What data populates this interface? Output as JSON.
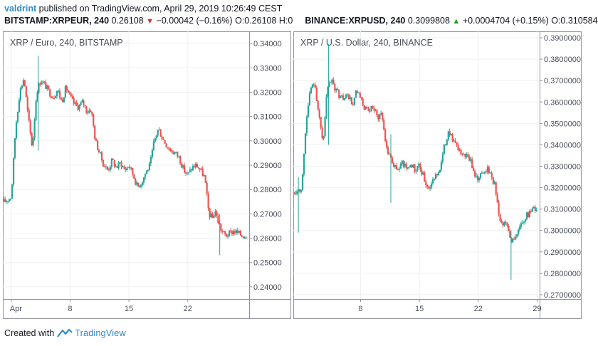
{
  "header": {
    "author": "valdrint",
    "published_text": "published on TradingView.com, April 29, 2019 10:26:49 CEST",
    "left_symbol": "BITSTAMP:XRPEUR, 240",
    "left_last": "0.26108",
    "left_change": "−0.00042 (−0.16%)",
    "left_ohlc": "O:0.26108 H:0",
    "right_symbol": "BINANCE:XRPUSD, 240",
    "right_last": "0.3099808",
    "right_change": "+0.0004704 (+0.15%)",
    "right_ohlc": "O:0.310584"
  },
  "footer": {
    "created_with": "Created with",
    "brand": "TradingView"
  },
  "colors": {
    "up": "#26a69a",
    "down": "#ef5350",
    "grid": "#eef0f3",
    "axis": "#8e939c",
    "author": "#2f8ccb"
  },
  "chart_data": [
    {
      "type": "candlestick",
      "title": "XRP / Euro, 240, BITSTAMP",
      "ylim": [
        0.235,
        0.345
      ],
      "y_ticks": [
        0.24,
        0.25,
        0.26,
        0.27,
        0.28,
        0.29,
        0.3,
        0.31,
        0.32,
        0.33,
        0.34
      ],
      "y_tick_labels": [
        "0.24000",
        "0.25000",
        "0.26000",
        "0.27000",
        "0.28000",
        "0.29000",
        "0.30000",
        "0.31000",
        "0.32000",
        "0.33000",
        "0.34000"
      ],
      "x_ticks": [
        {
          "day": 1,
          "label": "Apr"
        },
        {
          "day": 8,
          "label": "8"
        },
        {
          "day": 15,
          "label": "15"
        },
        {
          "day": 22,
          "label": "22"
        }
      ],
      "x_range": [
        0,
        29.3
      ],
      "series": [
        {
          "name": "XRPEUR",
          "points": [
            [
              0.2,
              0.275
            ],
            [
              1,
              0.277
            ],
            [
              1.5,
              0.305
            ],
            [
              2,
              0.32
            ],
            [
              2.5,
              0.326
            ],
            [
              3,
              0.31
            ],
            [
              3.5,
              0.297
            ],
            [
              4,
              0.32
            ],
            [
              4.5,
              0.325
            ],
            [
              5,
              0.323
            ],
            [
              5.5,
              0.32
            ],
            [
              6,
              0.318
            ],
            [
              6.5,
              0.321
            ],
            [
              7,
              0.316
            ],
            [
              7.5,
              0.322
            ],
            [
              8,
              0.318
            ],
            [
              8.5,
              0.315
            ],
            [
              9,
              0.314
            ],
            [
              9.5,
              0.316
            ],
            [
              10,
              0.312
            ],
            [
              10.5,
              0.313
            ],
            [
              11,
              0.3
            ],
            [
              11.5,
              0.295
            ],
            [
              12,
              0.29
            ],
            [
              12.5,
              0.288
            ],
            [
              13,
              0.292
            ],
            [
              13.5,
              0.289
            ],
            [
              14,
              0.291
            ],
            [
              14.5,
              0.288
            ],
            [
              15,
              0.29
            ],
            [
              15.5,
              0.286
            ],
            [
              16,
              0.281
            ],
            [
              16.5,
              0.283
            ],
            [
              17,
              0.287
            ],
            [
              17.5,
              0.29
            ],
            [
              18,
              0.3
            ],
            [
              18.5,
              0.305
            ],
            [
              19,
              0.301
            ],
            [
              19.5,
              0.298
            ],
            [
              20,
              0.296
            ],
            [
              20.5,
              0.295
            ],
            [
              21,
              0.293
            ],
            [
              21.5,
              0.288
            ],
            [
              22,
              0.286
            ],
            [
              22.5,
              0.289
            ],
            [
              23,
              0.29
            ],
            [
              23.5,
              0.288
            ],
            [
              24,
              0.285
            ],
            [
              24.5,
              0.27
            ],
            [
              25,
              0.268
            ],
            [
              25.2,
              0.272
            ],
            [
              25.5,
              0.268
            ],
            [
              26,
              0.263
            ],
            [
              26.5,
              0.261
            ],
            [
              27,
              0.262
            ],
            [
              27.5,
              0.263
            ],
            [
              28,
              0.262
            ],
            [
              28.5,
              0.261
            ],
            [
              29,
              0.2611
            ]
          ]
        }
      ],
      "wicks": [
        {
          "day": 4.2,
          "low": 0.296,
          "high": 0.335
        },
        {
          "day": 25.8,
          "low": 0.253,
          "high": 0.27
        }
      ]
    },
    {
      "type": "candlestick",
      "title": "XRP / U.S. Dollar, 240, BINANCE",
      "ylim": [
        0.268,
        0.393
      ],
      "y_ticks": [
        0.27,
        0.28,
        0.29,
        0.3,
        0.31,
        0.32,
        0.33,
        0.34,
        0.35,
        0.36,
        0.37,
        0.38,
        0.39
      ],
      "y_tick_labels": [
        "0.2700000",
        "0.2800000",
        "0.2900000",
        "0.3000000",
        "0.3100000",
        "0.3200000",
        "0.3300000",
        "0.3400000",
        "0.3500000",
        "0.3600000",
        "0.3700000",
        "0.3800000",
        "0.3900000"
      ],
      "x_ticks": [
        {
          "day": 8,
          "label": "8"
        },
        {
          "day": 15,
          "label": "15"
        },
        {
          "day": 22,
          "label": "22"
        },
        {
          "day": 29,
          "label": "29"
        }
      ],
      "x_range": [
        0,
        29.3
      ],
      "series": [
        {
          "name": "XRPUSD",
          "points": [
            [
              0.2,
              0.318
            ],
            [
              1,
              0.32
            ],
            [
              1.5,
              0.35
            ],
            [
              2,
              0.365
            ],
            [
              2.5,
              0.37
            ],
            [
              3,
              0.355
            ],
            [
              3.5,
              0.34
            ],
            [
              4,
              0.365
            ],
            [
              4.5,
              0.37
            ],
            [
              5,
              0.366
            ],
            [
              5.5,
              0.363
            ],
            [
              6,
              0.361
            ],
            [
              6.5,
              0.364
            ],
            [
              7,
              0.358
            ],
            [
              7.5,
              0.365
            ],
            [
              8,
              0.361
            ],
            [
              8.5,
              0.357
            ],
            [
              9,
              0.355
            ],
            [
              9.5,
              0.358
            ],
            [
              10,
              0.353
            ],
            [
              10.5,
              0.355
            ],
            [
              11,
              0.34
            ],
            [
              11.5,
              0.335
            ],
            [
              12,
              0.33
            ],
            [
              12.5,
              0.328
            ],
            [
              13,
              0.332
            ],
            [
              13.5,
              0.329
            ],
            [
              14,
              0.331
            ],
            [
              14.5,
              0.328
            ],
            [
              15,
              0.33
            ],
            [
              15.5,
              0.325
            ],
            [
              16,
              0.32
            ],
            [
              16.5,
              0.322
            ],
            [
              17,
              0.326
            ],
            [
              17.5,
              0.33
            ],
            [
              18,
              0.34
            ],
            [
              18.5,
              0.347
            ],
            [
              19,
              0.342
            ],
            [
              19.5,
              0.338
            ],
            [
              20,
              0.336
            ],
            [
              20.5,
              0.335
            ],
            [
              21,
              0.333
            ],
            [
              21.5,
              0.327
            ],
            [
              22,
              0.324
            ],
            [
              22.5,
              0.327
            ],
            [
              23,
              0.329
            ],
            [
              23.5,
              0.326
            ],
            [
              24,
              0.321
            ],
            [
              24.5,
              0.305
            ],
            [
              25,
              0.302
            ],
            [
              25.2,
              0.306
            ],
            [
              25.5,
              0.301
            ],
            [
              26,
              0.295
            ],
            [
              26.5,
              0.298
            ],
            [
              27,
              0.302
            ],
            [
              27.5,
              0.306
            ],
            [
              28,
              0.308
            ],
            [
              28.5,
              0.31
            ],
            [
              29,
              0.31
            ]
          ]
        }
      ],
      "wicks": [
        {
          "day": 0.6,
          "low": 0.299,
          "high": 0.325
        },
        {
          "day": 4.2,
          "low": 0.34,
          "high": 0.387
        },
        {
          "day": 11.6,
          "low": 0.313,
          "high": 0.345
        },
        {
          "day": 25.9,
          "low": 0.277,
          "high": 0.3
        }
      ]
    }
  ]
}
